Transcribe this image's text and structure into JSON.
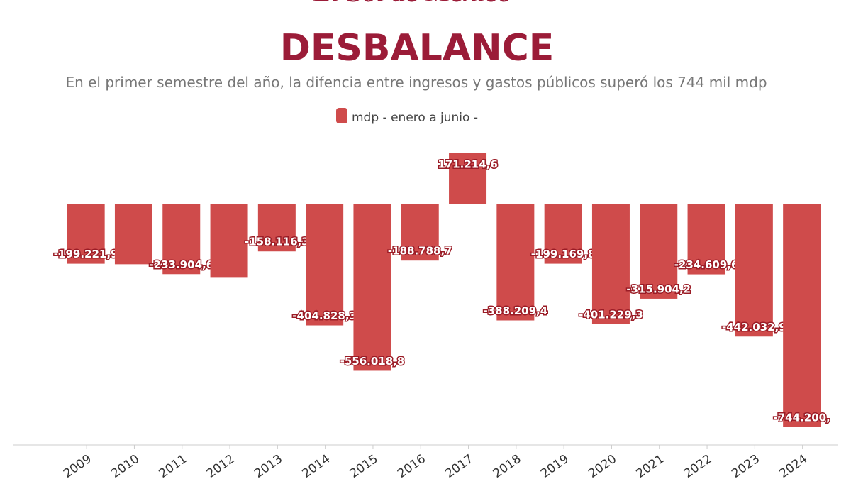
{
  "masthead": "El Sol de México",
  "chart_data": {
    "type": "bar",
    "title": "DESBALANCE",
    "subtitle": "En el primer semestre del año, la difencia entre ingresos y gastos públicos superó los 744 mil mdp",
    "categories": [
      "2009",
      "2010",
      "2011",
      "2012",
      "2013",
      "2014",
      "2015",
      "2016",
      "2017",
      "2018",
      "2019",
      "2020",
      "2021",
      "2022",
      "2023",
      "2024"
    ],
    "series": [
      {
        "name": "mdp - enero a junio -",
        "color": "#cf4b4b",
        "values": [
          -199221.9,
          -201000,
          -233904.6,
          -246000,
          -158116.3,
          -404828.3,
          -556018.8,
          -188788.7,
          171214.6,
          -388209.4,
          -199169.8,
          -401229.3,
          -315904.2,
          -234609.6,
          -442032.9,
          -744200
        ],
        "value_labels": [
          "-199.221,9",
          null,
          "-233.904,6",
          null,
          "-158.116,3",
          "-404.828,3",
          "-556.018,8",
          "-188.788,7",
          "171.214,6",
          "-388.209,4",
          "-199.169,8",
          "-401.229,3",
          "-315.904,2",
          "-234.609,6",
          "-442.032,9",
          "-744.200,"
        ]
      }
    ]
  }
}
